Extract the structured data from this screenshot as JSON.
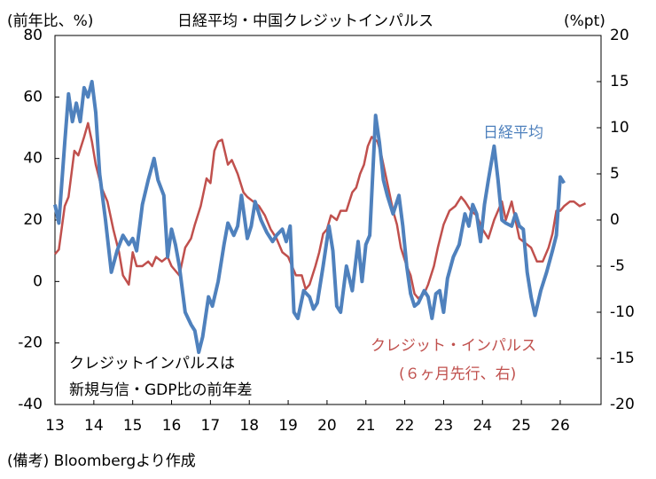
{
  "chart_data": {
    "type": "line",
    "title": "日経平均・中国クレジットインパルス",
    "y_label": "(前年比、%)",
    "y2_label": "(%pt)",
    "footnote": "(備考) Bloombergより作成",
    "annotations": [
      "(６ヶ月先行、右)",
      "クレジットインパルスは",
      "新規与信・GDP比の前年差"
    ],
    "xlim": [
      13,
      27.05
    ],
    "xticks": [
      13,
      14,
      15,
      16,
      17,
      18,
      19,
      20,
      21,
      22,
      23,
      24,
      25,
      26
    ],
    "ylim": [
      -40,
      80
    ],
    "yticks": [
      -40,
      -20,
      0,
      20,
      40,
      60,
      80
    ],
    "y2lim": [
      -20,
      20
    ],
    "y2ticks": [
      -20,
      -15,
      -10,
      -5,
      0,
      5,
      10,
      15,
      20
    ],
    "series": [
      {
        "name": "日経平均",
        "color": "#4f81bd",
        "x": [
          13.0,
          13.1,
          13.25,
          13.35,
          13.45,
          13.55,
          13.65,
          13.75,
          13.85,
          13.95,
          14.05,
          14.15,
          14.3,
          14.45,
          14.6,
          14.75,
          14.9,
          15.0,
          15.1,
          15.25,
          15.4,
          15.55,
          15.65,
          15.8,
          15.9,
          16.0,
          16.1,
          16.2,
          16.35,
          16.5,
          16.6,
          16.7,
          16.8,
          16.95,
          17.05,
          17.2,
          17.35,
          17.45,
          17.6,
          17.7,
          17.8,
          17.95,
          18.05,
          18.15,
          18.3,
          18.45,
          18.6,
          18.7,
          18.85,
          18.95,
          19.05,
          19.15,
          19.25,
          19.4,
          19.55,
          19.65,
          19.75,
          19.9,
          20.05,
          20.15,
          20.25,
          20.35,
          20.5,
          20.65,
          20.8,
          20.9,
          21.0,
          21.1,
          21.25,
          21.35,
          21.45,
          21.55,
          21.7,
          21.85,
          21.95,
          22.05,
          22.15,
          22.25,
          22.35,
          22.5,
          22.6,
          22.7,
          22.8,
          22.9,
          23.0,
          23.1,
          23.25,
          23.4,
          23.55,
          23.65,
          23.75,
          23.85,
          23.95,
          24.05,
          24.15,
          24.3,
          24.4,
          24.5,
          24.6,
          24.75,
          24.85,
          24.95,
          25.05,
          25.15,
          25.25,
          25.35,
          25.5,
          25.65,
          25.8,
          25.9,
          26.0,
          26.1
        ],
        "values": [
          25,
          19,
          45,
          61,
          52,
          58,
          52,
          63,
          60,
          65,
          55,
          35,
          20,
          3,
          10,
          15,
          12,
          14,
          10,
          25,
          33,
          40,
          33,
          28,
          8,
          17,
          12,
          5,
          -10,
          -14,
          -16,
          -23,
          -18,
          -5,
          -8,
          0,
          12,
          19,
          15,
          18,
          28,
          14,
          18,
          26,
          20,
          16,
          13,
          15,
          17,
          13,
          18,
          -10,
          -12,
          -3,
          -5,
          -9,
          -7,
          5,
          18,
          10,
          -8,
          -10,
          5,
          -3,
          13,
          0,
          12,
          15,
          54,
          45,
          33,
          28,
          22,
          28,
          18,
          5,
          -4,
          -8,
          -7,
          -3,
          -5,
          -12,
          -4,
          -3,
          -10,
          1,
          8,
          12,
          22,
          18,
          25,
          22,
          13,
          25,
          33,
          44,
          33,
          20,
          19,
          18,
          22,
          18,
          17,
          3,
          -5,
          -11,
          -3,
          3,
          10,
          15,
          34,
          32
        ]
      },
      {
        "name": "クレジット・インパルス",
        "color": "#c0504d",
        "axis": "y2",
        "x": [
          13.0,
          13.1,
          13.25,
          13.35,
          13.5,
          13.6,
          13.75,
          13.85,
          13.95,
          14.05,
          14.2,
          14.35,
          14.5,
          14.65,
          14.75,
          14.9,
          15.0,
          15.1,
          15.25,
          15.4,
          15.5,
          15.6,
          15.75,
          15.9,
          16.0,
          16.2,
          16.35,
          16.5,
          16.6,
          16.75,
          16.9,
          17.0,
          17.1,
          17.2,
          17.3,
          17.45,
          17.55,
          17.7,
          17.85,
          17.95,
          18.1,
          18.25,
          18.4,
          18.55,
          18.7,
          18.85,
          19.0,
          19.1,
          19.2,
          19.35,
          19.45,
          19.55,
          19.7,
          19.8,
          19.9,
          20.0,
          20.1,
          20.25,
          20.35,
          20.5,
          20.65,
          20.75,
          20.85,
          20.95,
          21.05,
          21.15,
          21.3,
          21.4,
          21.5,
          21.6,
          21.7,
          21.8,
          21.9,
          22.05,
          22.15,
          22.25,
          22.35,
          22.5,
          22.6,
          22.75,
          22.85,
          23.0,
          23.15,
          23.3,
          23.45,
          23.55,
          23.7,
          23.85,
          24.0,
          24.15,
          24.3,
          24.5,
          24.6,
          24.75,
          24.85,
          24.95,
          25.1,
          25.25,
          25.4,
          25.55,
          25.7,
          25.8,
          25.9,
          26.0,
          26.1,
          26.25,
          26.35,
          26.5,
          26.65
        ],
        "values": [
          -3.7,
          -3.2,
          1.5,
          2.5,
          7.5,
          7,
          9,
          10.5,
          8.5,
          6,
          3.5,
          2,
          -1,
          -3.5,
          -6,
          -7,
          -3.5,
          -5,
          -5,
          -4.5,
          -5,
          -4,
          -4.5,
          -4,
          -5,
          -6,
          -3,
          -2,
          -0.5,
          1.5,
          4.5,
          4,
          7.5,
          8.5,
          8.7,
          6,
          6.5,
          5,
          3,
          2.5,
          2,
          1.5,
          0.5,
          -1,
          -2,
          -3.5,
          -4,
          -5,
          -6,
          -6,
          -7.5,
          -7,
          -5,
          -3.5,
          -1.5,
          -1,
          0.5,
          0,
          1,
          1,
          3,
          3.5,
          5,
          6,
          8,
          9,
          8.5,
          7,
          5,
          3,
          1,
          -0.5,
          -3,
          -5,
          -6,
          -8,
          -8.5,
          -8,
          -7,
          -5,
          -3,
          -0.5,
          1,
          1.5,
          2.5,
          2,
          1,
          0.5,
          -1,
          -2,
          0,
          2,
          0,
          2,
          0,
          -2,
          -2.5,
          -3,
          -4.5,
          -4.5,
          -3,
          -1.5,
          1,
          1,
          1.5,
          2,
          2,
          1.5,
          1.8
        ]
      }
    ]
  }
}
